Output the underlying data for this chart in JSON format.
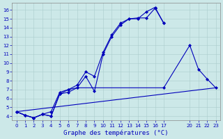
{
  "title": "Graphe des températures (°C)",
  "bg_color": "#cce8e8",
  "line_color": "#0000bb",
  "ylim": [
    3.5,
    16.8
  ],
  "xlim": [
    -0.5,
    23.5
  ],
  "yticks": [
    4,
    5,
    6,
    7,
    8,
    9,
    10,
    11,
    12,
    13,
    14,
    15,
    16
  ],
  "xticks": [
    0,
    1,
    2,
    3,
    4,
    5,
    6,
    7,
    8,
    9,
    10,
    11,
    12,
    13,
    14,
    15,
    16,
    17,
    20,
    21,
    22,
    23
  ],
  "series": [
    {
      "x": [
        0,
        1,
        2,
        3,
        4,
        5,
        6,
        7,
        8,
        9,
        10,
        11,
        12,
        13,
        14,
        15,
        16,
        17
      ],
      "y": [
        4.5,
        4.1,
        3.8,
        4.2,
        4.5,
        6.7,
        7.0,
        7.5,
        9.0,
        8.5,
        11.2,
        13.2,
        14.5,
        15.0,
        15.1,
        15.1,
        16.2,
        14.5
      ]
    },
    {
      "x": [
        0,
        1,
        2,
        3,
        4,
        5,
        6,
        7,
        8,
        9,
        10,
        11,
        12,
        13,
        14,
        15,
        16,
        17
      ],
      "y": [
        4.5,
        4.1,
        3.8,
        4.2,
        4.0,
        6.5,
        6.7,
        7.2,
        8.5,
        6.8,
        11.0,
        13.0,
        14.3,
        15.0,
        15.0,
        15.8,
        16.3,
        14.5
      ]
    },
    {
      "x": [
        0,
        1,
        2,
        3,
        4,
        5,
        6,
        7,
        17,
        20,
        21,
        22,
        23
      ],
      "y": [
        4.5,
        4.1,
        3.8,
        4.2,
        4.0,
        6.5,
        7.0,
        7.2,
        7.2,
        12.0,
        9.3,
        8.2,
        7.2
      ]
    },
    {
      "x": [
        0,
        23
      ],
      "y": [
        4.5,
        7.2
      ]
    }
  ]
}
